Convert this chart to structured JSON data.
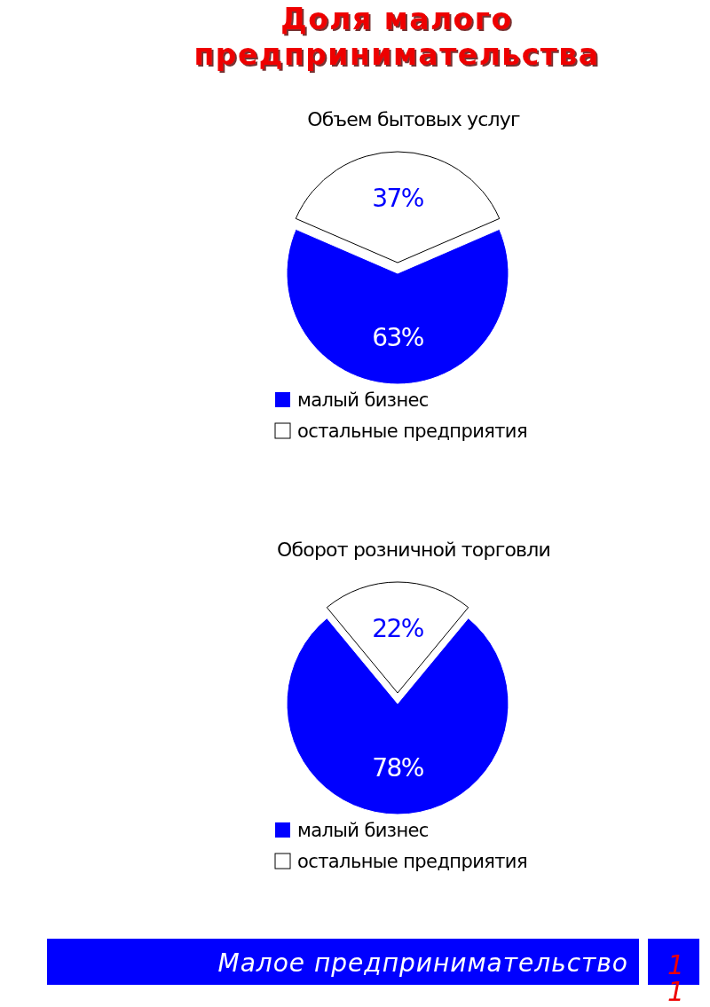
{
  "chart_data": [
    {
      "type": "pie",
      "title": "Объем бытовых услуг",
      "categories": [
        "малый бизнес",
        "остальные предприятия"
      ],
      "values": [
        63,
        37
      ],
      "colors": [
        "#0000ff",
        "#ffffff"
      ],
      "value_labels": [
        "63%",
        "37%"
      ],
      "legend": "bottom",
      "annotations": [
        "Доля малого предпринимательства"
      ]
    },
    {
      "type": "pie",
      "title": "Оборот розничной торговли",
      "categories": [
        "малый бизнес",
        "остальные предприятия"
      ],
      "values": [
        78,
        22
      ],
      "colors": [
        "#0000ff",
        "#ffffff"
      ],
      "value_labels": [
        "78%",
        "22%"
      ],
      "legend": "bottom",
      "annotations": [
        "Малое предпринимательство",
        "11"
      ]
    }
  ]
}
